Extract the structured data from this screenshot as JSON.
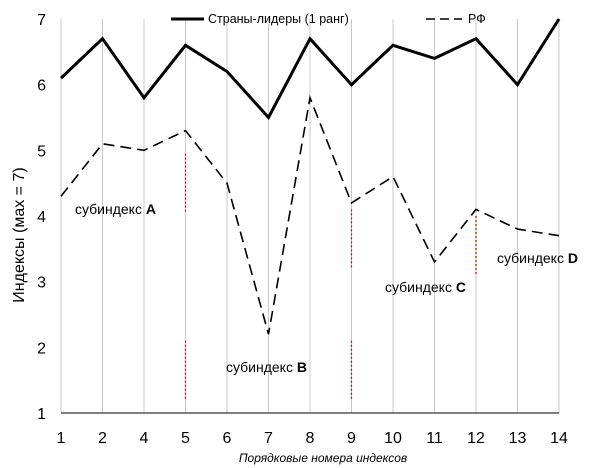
{
  "chart_data": {
    "type": "line",
    "categories": [
      "1",
      "2",
      "4",
      "5",
      "6",
      "7",
      "8",
      "9",
      "10",
      "11",
      "12",
      "13",
      "14"
    ],
    "series": [
      {
        "name": "Страны-лидеры (1 ранг)",
        "values": [
          6.1,
          6.7,
          5.8,
          6.6,
          6.2,
          5.5,
          6.7,
          6.0,
          6.6,
          6.4,
          6.7,
          6.0,
          7.0
        ],
        "style": "solid",
        "color": "#000000"
      },
      {
        "name": "РФ",
        "values": [
          4.3,
          5.1,
          5.0,
          5.3,
          4.5,
          2.2,
          5.8,
          4.2,
          4.6,
          3.3,
          4.1,
          3.8,
          3.7
        ],
        "style": "dashed",
        "color": "#000000"
      }
    ],
    "xlabel": "Порядковые номера индексов",
    "ylabel": "Индексы (мах = 7)",
    "ylim": [
      1,
      7
    ],
    "yticks": [
      "1",
      "2",
      "3",
      "4",
      "5",
      "6",
      "7"
    ],
    "grid": "vertical",
    "legend": "top",
    "separator_color": "#cc0000",
    "annotations": [
      {
        "prefix": "субиндекс ",
        "letter": "A"
      },
      {
        "prefix": "субиндекс ",
        "letter": "B"
      },
      {
        "prefix": "субиндекс ",
        "letter": "C"
      },
      {
        "prefix": "субиндекс ",
        "letter": "D"
      }
    ]
  }
}
